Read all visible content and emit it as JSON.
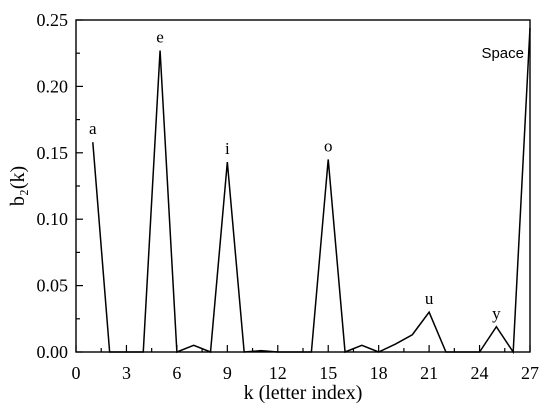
{
  "chart_data": {
    "type": "line",
    "title": "",
    "xlabel": "k (letter index)",
    "ylabel": "b₂(k)",
    "xlim": [
      0,
      27
    ],
    "ylim": [
      0,
      0.25
    ],
    "xticks": [
      0,
      3,
      6,
      9,
      12,
      15,
      18,
      21,
      24,
      27
    ],
    "yticks": [
      "0.00",
      "0.05",
      "0.10",
      "0.15",
      "0.20",
      "0.25"
    ],
    "grid": false,
    "legend": "none",
    "series": [
      {
        "x": [
          1,
          2,
          3,
          4,
          5,
          6,
          7,
          8,
          9,
          10,
          11,
          12,
          13,
          14,
          15,
          16,
          17,
          18,
          19,
          20,
          21,
          22,
          23,
          24,
          25,
          26,
          27
        ],
        "values": [
          0.158,
          0,
          0,
          0,
          0.227,
          0,
          0.005,
          0,
          0.143,
          0,
          0.001,
          0,
          0,
          0,
          0.145,
          0,
          0.005,
          0,
          0.006,
          0.013,
          0.03,
          0,
          0,
          0,
          0.019,
          0,
          0.244
        ],
        "color": "#000000"
      }
    ],
    "annotations": [
      {
        "text": "a",
        "k": 1,
        "value": 0.158
      },
      {
        "text": "e",
        "k": 5,
        "value": 0.227
      },
      {
        "text": "i",
        "k": 9,
        "value": 0.143
      },
      {
        "text": "o",
        "k": 15,
        "value": 0.145
      },
      {
        "text": "u",
        "k": 21,
        "value": 0.03
      },
      {
        "text": "y",
        "k": 25,
        "value": 0.019
      },
      {
        "text": "Space",
        "k": 27,
        "value": 0.244
      }
    ]
  }
}
